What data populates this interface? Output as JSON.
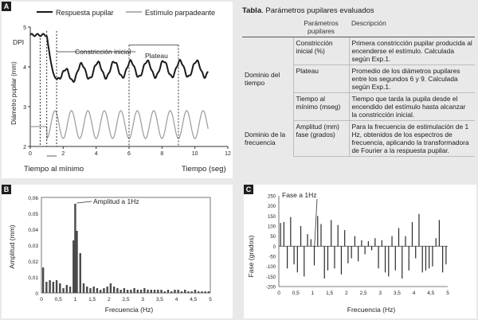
{
  "panels": {
    "a": {
      "tag": "A",
      "legend": {
        "pupil": "Respuesta pupilar",
        "stimulus": "Estímulo parpadeante"
      },
      "dpi_label": "DPI",
      "annotations": {
        "constriccion": "Constricción inicial",
        "plateau": "Plateau"
      },
      "bottom": {
        "tiempo_minimo": "Tiempo al mínimo",
        "tiempo": "Tiempo (seg)"
      }
    },
    "b": {
      "tag": "B",
      "annotation": "Amplitud a 1Hz"
    },
    "c": {
      "tag": "C",
      "annotation": "Fase a 1Hz"
    }
  },
  "table": {
    "title_bold": "Tabla",
    "title_rest": ". Parámetros pupilares evaluados",
    "headers": {
      "parametros": "Parámetros pupilares",
      "descripcion": "Descripción"
    },
    "groups": {
      "tiempo": "Dominio del tiempo",
      "frecuencia": "Dominio de la frecuencia"
    },
    "rows": [
      {
        "param": "Constricción inicial (%)",
        "desc": "Primera constricción pupilar producida al encenderse el estímulo. Calculada según Exp.1."
      },
      {
        "param": "Plateau",
        "desc": "Promedio de los diámetros pupilares entre los segundos 6 y 9. Calculada según Exp.1."
      },
      {
        "param": "Tiempo al mínimo (mseg)",
        "desc": "Tiempo que tarda la pupila desde el encendido del estímulo hasta alcanzar la constricción inicial."
      },
      {
        "param": "Amplitud (mm) fase (grados)",
        "desc": "Para la frecuencia de estimulación de 1 Hz, obtenidos de los espectros de frecuencia, aplicando la transformadora de Fourier a la respuesta pupilar."
      }
    ]
  },
  "chart_data": [
    {
      "type": "line",
      "panel": "A",
      "ylabel": "Diámetro pupilar (mm)",
      "xlabel": "Tiempo (seg)",
      "x_ticks": [
        0,
        2,
        4,
        6,
        8,
        10,
        12
      ],
      "y_ticks": [
        2,
        3,
        4,
        5
      ],
      "xlim": [
        0,
        12
      ],
      "ylim": [
        2,
        5
      ],
      "series": [
        {
          "name": "Respuesta pupilar",
          "color": "#1a1a1a",
          "baseline": 4.8,
          "minimum": 3.7,
          "time_to_min": 1.6,
          "oscillation_hz": 1,
          "oscillation_amp": 0.2,
          "plateau_level": 3.95
        },
        {
          "name": "Estímulo parpadeante",
          "color": "#9a9a9a",
          "off_level": 2.5,
          "on_low": 2.2,
          "on_high": 2.9,
          "onset": 1.0,
          "frequency_hz": 1
        }
      ],
      "markers": {
        "onset": 1.0,
        "time_to_min": 1.6,
        "constriccion": [
          0.6,
          1.6
        ],
        "plateau": [
          6,
          9
        ]
      }
    },
    {
      "type": "bar",
      "panel": "B",
      "ylabel": "Amplitud (mm)",
      "xlabel": "Frecuencia (Hz)",
      "xlim": [
        0,
        5
      ],
      "ylim": [
        0,
        0.06
      ],
      "x_ticks": [
        "0",
        "0,5",
        "1",
        "1,5",
        "2",
        "2,5",
        "3",
        "3,5",
        "4",
        "4,5",
        "5"
      ],
      "y_ticks": [
        "0",
        "0,01",
        "0,02",
        "0,03",
        "0,04",
        "0,05",
        "0,06"
      ],
      "x": [
        0.05,
        0.15,
        0.25,
        0.35,
        0.45,
        0.55,
        0.65,
        0.75,
        0.85,
        0.95,
        1.0,
        1.05,
        1.15,
        1.25,
        1.35,
        1.45,
        1.55,
        1.65,
        1.75,
        1.85,
        1.95,
        2.05,
        2.15,
        2.25,
        2.35,
        2.45,
        2.55,
        2.65,
        2.75,
        2.85,
        2.95,
        3.05,
        3.15,
        3.25,
        3.35,
        3.45,
        3.55,
        3.65,
        3.75,
        3.85,
        3.95,
        4.05,
        4.15,
        4.25,
        4.35,
        4.45,
        4.55,
        4.65,
        4.75,
        4.85,
        4.95
      ],
      "values": [
        0.016,
        0.007,
        0.008,
        0.007,
        0.008,
        0.006,
        0.003,
        0.005,
        0.004,
        0.033,
        0.056,
        0.039,
        0.025,
        0.006,
        0.004,
        0.003,
        0.004,
        0.003,
        0.002,
        0.003,
        0.004,
        0.006,
        0.004,
        0.003,
        0.002,
        0.003,
        0.002,
        0.002,
        0.003,
        0.002,
        0.002,
        0.003,
        0.002,
        0.002,
        0.002,
        0.002,
        0.002,
        0.001,
        0.002,
        0.001,
        0.002,
        0.002,
        0.001,
        0.002,
        0.001,
        0.001,
        0.002,
        0.001,
        0.001,
        0.001,
        0.001
      ],
      "annotation": "Amplitud a 1Hz"
    },
    {
      "type": "bar",
      "panel": "C",
      "ylabel": "Fase (grados)",
      "xlabel": "Frecuencia (Hz)",
      "xlim": [
        0,
        5
      ],
      "ylim": [
        -200,
        250
      ],
      "x_ticks": [
        "0",
        "0,5",
        "1",
        "1,5",
        "2",
        "2,5",
        "3",
        "3,5",
        "4",
        "4,5",
        "5"
      ],
      "y_ticks": [
        "-200",
        "-150",
        "-100",
        "-50",
        "0",
        "50",
        "100",
        "150",
        "200",
        "250"
      ],
      "x": [
        0.05,
        0.15,
        0.25,
        0.35,
        0.45,
        0.55,
        0.65,
        0.75,
        0.85,
        0.95,
        1.05,
        1.15,
        1.25,
        1.35,
        1.45,
        1.55,
        1.65,
        1.75,
        1.85,
        1.95,
        2.05,
        2.15,
        2.25,
        2.35,
        2.45,
        2.55,
        2.65,
        2.75,
        2.85,
        2.95,
        3.05,
        3.15,
        3.25,
        3.35,
        3.45,
        3.55,
        3.65,
        3.75,
        3.85,
        3.95,
        4.05,
        4.15,
        4.25,
        4.35,
        4.45,
        4.55,
        4.65,
        4.75,
        4.85,
        4.95
      ],
      "values": [
        115,
        120,
        -110,
        145,
        -90,
        -130,
        100,
        -150,
        60,
        35,
        -95,
        150,
        110,
        -160,
        -120,
        130,
        -110,
        105,
        -140,
        80,
        -85,
        -60,
        50,
        -75,
        30,
        -40,
        25,
        -20,
        40,
        -110,
        30,
        -130,
        -150,
        50,
        -120,
        90,
        -160,
        50,
        -120,
        120,
        -60,
        160,
        -130,
        -120,
        -110,
        -100,
        40,
        130,
        -130,
        -90
      ],
      "annotation": "Fase a 1Hz"
    }
  ]
}
